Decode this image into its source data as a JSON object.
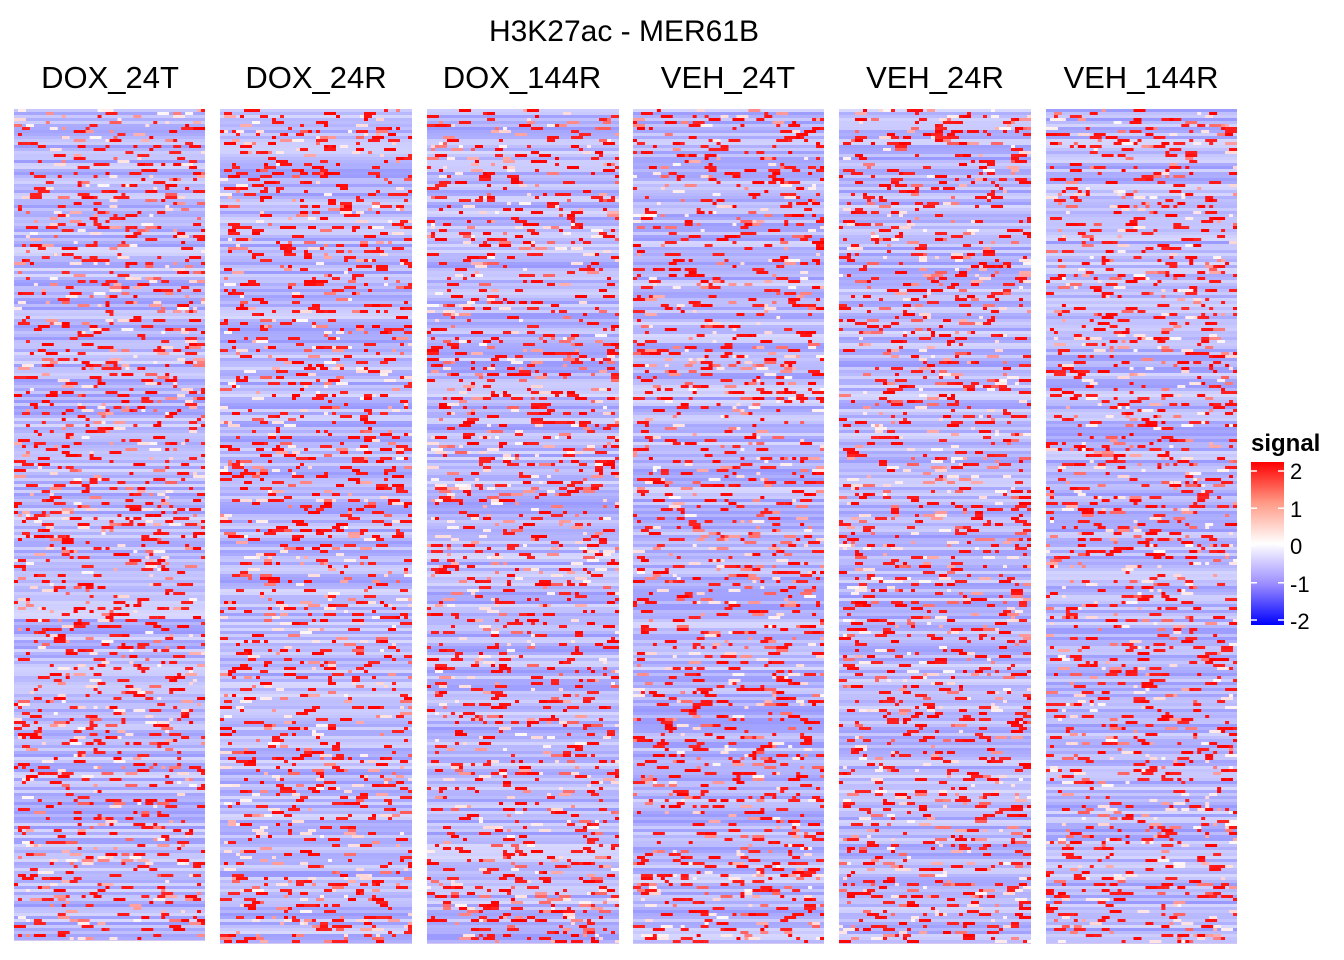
{
  "chart_data": {
    "type": "heatmap",
    "title": "H3K27ac - MER61B",
    "panels": [
      "DOX_24T",
      "DOX_24R",
      "DOX_144R",
      "VEH_24T",
      "VEH_24R",
      "VEH_144R"
    ],
    "legend": {
      "title": "signal",
      "placement": "right",
      "ticks": [
        2,
        1,
        0,
        -1,
        -2
      ],
      "tick_labels": [
        "2",
        "1",
        "0",
        "-1",
        "-2"
      ],
      "range": [
        -2,
        2
      ]
    },
    "colors": {
      "low": "#0000ff",
      "mid": "#ffffff",
      "high": "#ff0000",
      "background": "#d4c8f2"
    }
  }
}
